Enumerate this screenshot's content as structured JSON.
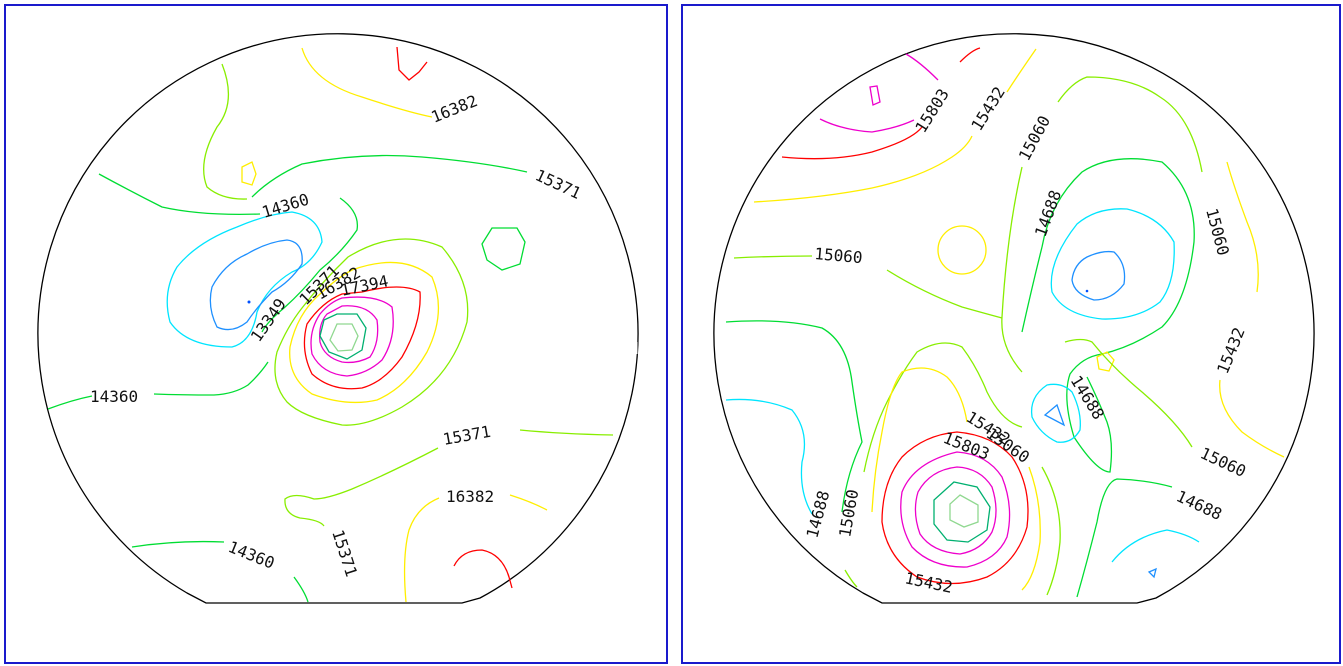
{
  "colors": {
    "frame": "#1a1acc",
    "outline": "#000000",
    "level_1": "#0050ff",
    "level_2": "#1e90ff",
    "level_3": "#00e5ff",
    "level_4": "#00dd33",
    "level_5": "#88ee00",
    "level_6": "#ffee00",
    "level_7": "#ff0000",
    "level_8": "#ee00cc",
    "level_9": "#00b070",
    "level_10": "#90d890"
  },
  "maps": [
    {
      "labels": [
        "16382",
        "15371",
        "14360",
        "15371",
        "16382",
        "17394",
        "13349",
        "14360",
        "15371",
        "16382",
        "14360",
        "15371"
      ]
    },
    {
      "labels": [
        "15803",
        "15432",
        "15060",
        "14688",
        "15060",
        "15060",
        "15432",
        "14688",
        "15432",
        "15803",
        "15060",
        "15060",
        "14688",
        "14688",
        "15060",
        "15432"
      ]
    }
  ]
}
